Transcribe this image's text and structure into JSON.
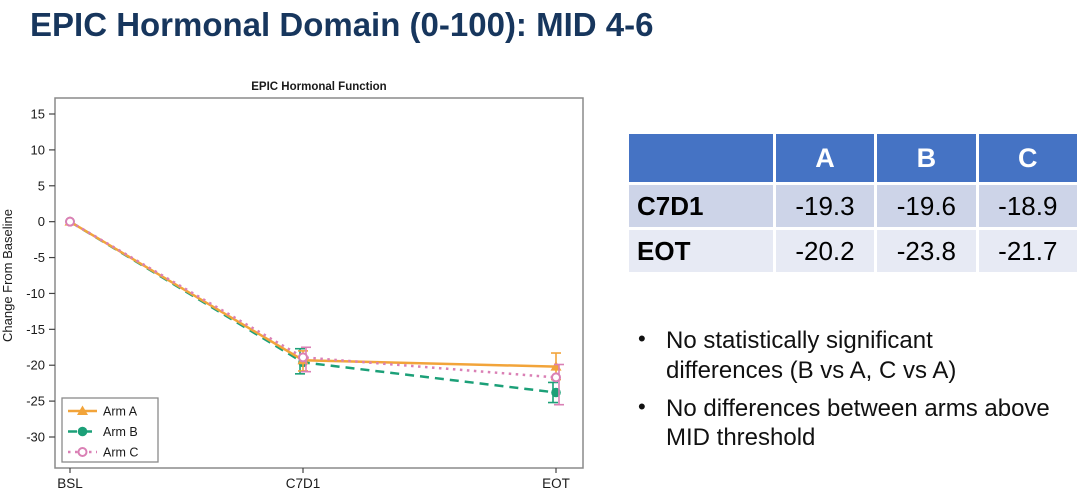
{
  "slide": {
    "title": "EPIC Hormonal Domain (0-100): MID 4-6"
  },
  "chart_data": {
    "type": "line",
    "title": "EPIC Hormonal Function",
    "ylabel": "Change From Baseline",
    "x_categories": [
      "BSL",
      "C7D1",
      "EOT"
    ],
    "ylim": [
      -30,
      15
    ],
    "yticks": [
      15,
      10,
      5,
      0,
      -5,
      -10,
      -15,
      -20,
      -25,
      -30
    ],
    "grid": false,
    "legend_position": "bottom-left",
    "series": [
      {
        "name": "Arm A",
        "color": "#F2A43A",
        "dash": "solid",
        "marker": "triangle",
        "values": [
          0,
          -19.3,
          -20.2
        ],
        "err_lo": [
          null,
          -20.8,
          -22.0
        ],
        "err_hi": [
          null,
          -18.0,
          -18.3
        ]
      },
      {
        "name": "Arm B",
        "color": "#1CA078",
        "dash": "dashed",
        "marker": "circle",
        "values": [
          0,
          -19.6,
          -23.8
        ],
        "err_lo": [
          null,
          -21.2,
          -25.2
        ],
        "err_hi": [
          null,
          -17.7,
          -22.4
        ]
      },
      {
        "name": "Arm C",
        "color": "#DA80B5",
        "dash": "dotted",
        "marker": "open-circle",
        "values": [
          0,
          -18.9,
          -21.7
        ],
        "err_lo": [
          null,
          -20.9,
          -25.5
        ],
        "err_hi": [
          null,
          -17.5,
          -19.9
        ]
      }
    ]
  },
  "table": {
    "columns": [
      "A",
      "B",
      "C"
    ],
    "rows": [
      {
        "label": "C7D1",
        "values": [
          "-19.3",
          "-19.6",
          "-18.9"
        ]
      },
      {
        "label": "EOT",
        "values": [
          "-20.2",
          "-23.8",
          "-21.7"
        ]
      }
    ],
    "header_bg": "#4573C4",
    "row_bgs": [
      "#CDD4E8",
      "#E7EAF4"
    ]
  },
  "bullets": [
    "No statistically significant differences (B vs A, C vs A)",
    "No differences between arms above MID threshold"
  ],
  "colors": {
    "slide_title": "#17365D",
    "arm_a": "#F2A43A",
    "arm_b": "#1CA078",
    "arm_c": "#DA80B5",
    "frame": "#8A8A8A"
  }
}
